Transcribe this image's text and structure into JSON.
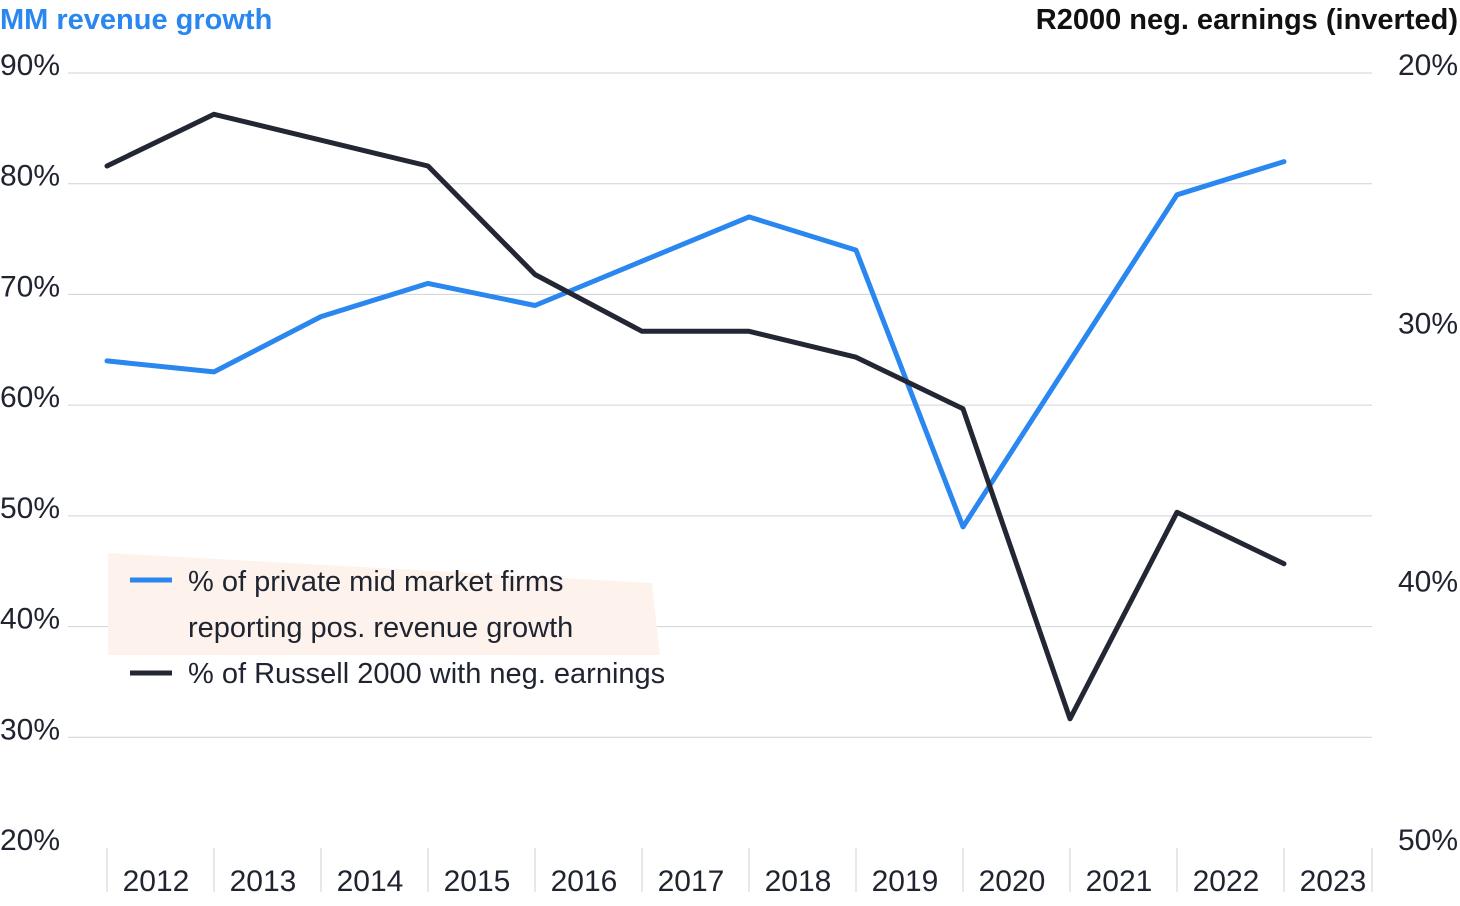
{
  "chart_data": {
    "type": "line",
    "left_axis_title": "MM revenue growth",
    "right_axis_title": "R2000 neg. earnings (inverted)",
    "x": [
      "2012",
      "2013",
      "2014",
      "2015",
      "2016",
      "2017",
      "2018",
      "2019",
      "2020",
      "2021",
      "2022",
      "2023"
    ],
    "y_left": {
      "ticks": [
        "90%",
        "80%",
        "70%",
        "60%",
        "50%",
        "40%",
        "30%",
        "20%"
      ],
      "range": [
        20,
        90
      ]
    },
    "y_right": {
      "ticks": [
        "20%",
        "30%",
        "40%",
        "50%"
      ],
      "range": [
        20,
        50
      ],
      "inverted": true
    },
    "grid": true,
    "legend_placement": "lower-left",
    "series": [
      {
        "name": "% of private mid market firms reporting pos. revenue growth",
        "axis": "left",
        "color": "#2a87f0",
        "values": [
          64,
          63,
          68,
          71,
          69,
          73,
          77,
          74,
          49,
          null,
          79,
          82
        ]
      },
      {
        "name": "% of Russell 2000 with neg. earnings",
        "axis": "right",
        "color": "#232733",
        "values": [
          23.6,
          21.6,
          null,
          23.6,
          27.8,
          30.0,
          30.0,
          31.0,
          33.0,
          45.0,
          37.0,
          39.0
        ]
      }
    ],
    "legend": [
      {
        "line1": "% of private mid market firms",
        "line2": "reporting pos. revenue growth",
        "color": "#2a87f0"
      },
      {
        "line1": "% of Russell 2000 with neg. earnings",
        "line2": "",
        "color": "#232733"
      }
    ],
    "colors": {
      "left_title": "#2a87f0",
      "right_title": "#111111",
      "grid": "#cfd2d6",
      "legend_bg": "#fdf3ec"
    }
  }
}
